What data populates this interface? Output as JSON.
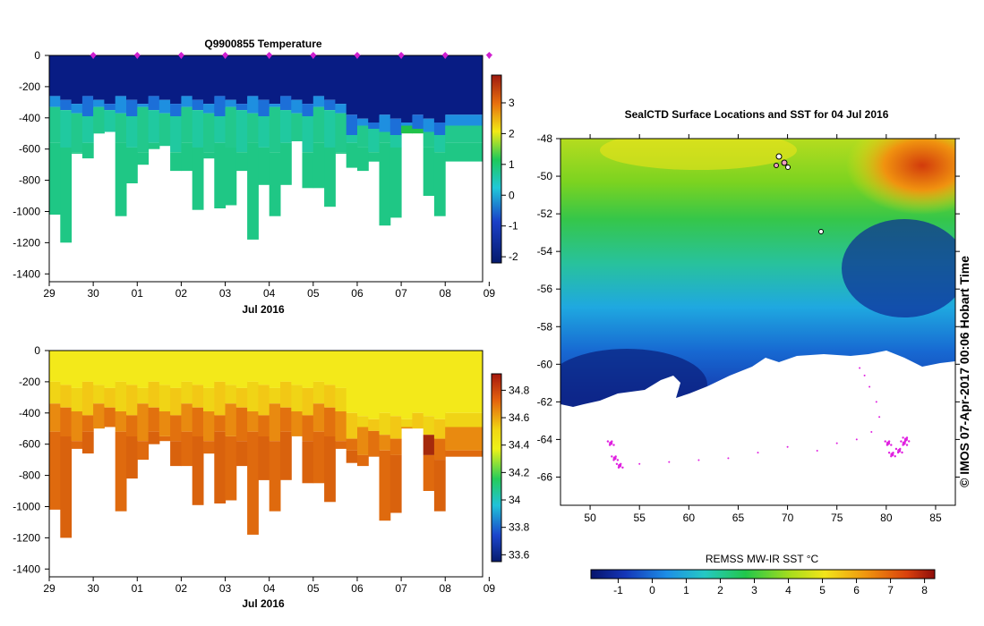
{
  "chart_data": [
    {
      "id": "temperature",
      "type": "heatmap",
      "title": "Q9900855  Temperature",
      "xlabel": "Jul 2016",
      "x_tick_labels": [
        "29",
        "30",
        "01",
        "02",
        "03",
        "04",
        "05",
        "06",
        "07",
        "08",
        "09"
      ],
      "y_tick_labels": [
        "0",
        "-200",
        "-400",
        "-600",
        "-800",
        "-1000",
        "-1200",
        "-1400"
      ],
      "ylim": [
        -1450,
        0
      ],
      "colorbar": {
        "ticks": [
          "-2",
          "-1",
          "0",
          "1",
          "2",
          "3"
        ],
        "range": [
          -2.2,
          3.9
        ]
      },
      "profile_markers": [
        1,
        2,
        3,
        4,
        5,
        6,
        7,
        8,
        9,
        10
      ],
      "profiles": [
        {
          "t": 0.0,
          "depth": 1020
        },
        {
          "t": 0.25,
          "depth": 1200
        },
        {
          "t": 0.5,
          "depth": 630
        },
        {
          "t": 0.75,
          "depth": 660
        },
        {
          "t": 1.0,
          "depth": 500
        },
        {
          "t": 1.25,
          "depth": 490
        },
        {
          "t": 1.5,
          "depth": 1030
        },
        {
          "t": 1.75,
          "depth": 820
        },
        {
          "t": 2.0,
          "depth": 700
        },
        {
          "t": 2.25,
          "depth": 600
        },
        {
          "t": 2.5,
          "depth": 580
        },
        {
          "t": 2.75,
          "depth": 740
        },
        {
          "t": 3.0,
          "depth": 740
        },
        {
          "t": 3.25,
          "depth": 990
        },
        {
          "t": 3.5,
          "depth": 660
        },
        {
          "t": 3.75,
          "depth": 980
        },
        {
          "t": 4.0,
          "depth": 960
        },
        {
          "t": 4.25,
          "depth": 740
        },
        {
          "t": 4.5,
          "depth": 1180
        },
        {
          "t": 4.75,
          "depth": 830
        },
        {
          "t": 5.0,
          "depth": 1030
        },
        {
          "t": 5.25,
          "depth": 830
        },
        {
          "t": 5.5,
          "depth": 550
        },
        {
          "t": 5.75,
          "depth": 850
        },
        {
          "t": 6.0,
          "depth": 850
        },
        {
          "t": 6.25,
          "depth": 970
        },
        {
          "t": 6.5,
          "depth": 630
        },
        {
          "t": 6.75,
          "depth": 720
        },
        {
          "t": 7.0,
          "depth": 740
        },
        {
          "t": 7.25,
          "depth": 680
        },
        {
          "t": 7.5,
          "depth": 1090
        },
        {
          "t": 7.75,
          "depth": 1040
        },
        {
          "t": 8.0,
          "depth": 500
        },
        {
          "t": 8.25,
          "depth": 500
        },
        {
          "t": 8.5,
          "depth": 900
        },
        {
          "t": 8.75,
          "depth": 1030
        },
        {
          "t": 9.0,
          "depth": 680
        }
      ]
    },
    {
      "id": "salinity",
      "type": "heatmap",
      "title": "",
      "xlabel": "Jul 2016",
      "x_tick_labels": [
        "29",
        "30",
        "01",
        "02",
        "03",
        "04",
        "05",
        "06",
        "07",
        "08",
        "09"
      ],
      "y_tick_labels": [
        "0",
        "-200",
        "-400",
        "-600",
        "-800",
        "-1000",
        "-1200",
        "-1400"
      ],
      "ylim": [
        -1450,
        0
      ],
      "colorbar": {
        "ticks": [
          "33.6",
          "33.8",
          "34",
          "34.2",
          "34.4",
          "34.6",
          "34.8"
        ],
        "range": [
          33.55,
          34.92
        ]
      }
    },
    {
      "id": "sst-map",
      "type": "heatmap",
      "title": "SealCTD Surface Locations and SST for 04 Jul 2016",
      "x_tick_labels": [
        "50",
        "55",
        "60",
        "65",
        "70",
        "75",
        "80",
        "85"
      ],
      "y_tick_labels": [
        "-48",
        "-50",
        "-52",
        "-54",
        "-56",
        "-58",
        "-60",
        "-62",
        "-64",
        "-66"
      ],
      "xlim": [
        47,
        87
      ],
      "ylim": [
        -67.5,
        -48
      ],
      "colorbar_label": "REMSS MW-IR SST °C",
      "colorbar": {
        "ticks": [
          "-1",
          "0",
          "1",
          "2",
          "3",
          "4",
          "5",
          "6",
          "7",
          "8"
        ],
        "range": [
          -1.8,
          8.3
        ]
      },
      "seal_track": [
        [
          52.1,
          -64.2
        ],
        [
          52.5,
          -65.0
        ],
        [
          53.0,
          -65.4
        ],
        [
          55,
          -65.3
        ],
        [
          58,
          -65.2
        ],
        [
          61,
          -65.1
        ],
        [
          64,
          -65.0
        ],
        [
          67,
          -64.7
        ],
        [
          70,
          -64.4
        ],
        [
          73,
          -64.6
        ],
        [
          75,
          -64.2
        ],
        [
          77,
          -64.0
        ],
        [
          78.5,
          -63.6
        ],
        [
          79.3,
          -62.8
        ],
        [
          79.0,
          -62.0
        ],
        [
          78.3,
          -61.2
        ],
        [
          77.8,
          -60.6
        ],
        [
          77.3,
          -60.2
        ],
        [
          80.2,
          -64.2
        ],
        [
          80.6,
          -64.8
        ],
        [
          81.3,
          -64.6
        ],
        [
          81.8,
          -64.2
        ],
        [
          82.0,
          -64.0
        ]
      ]
    }
  ],
  "watermark": "© IMOS 07-Apr-2017 00:06 Hobart Time"
}
